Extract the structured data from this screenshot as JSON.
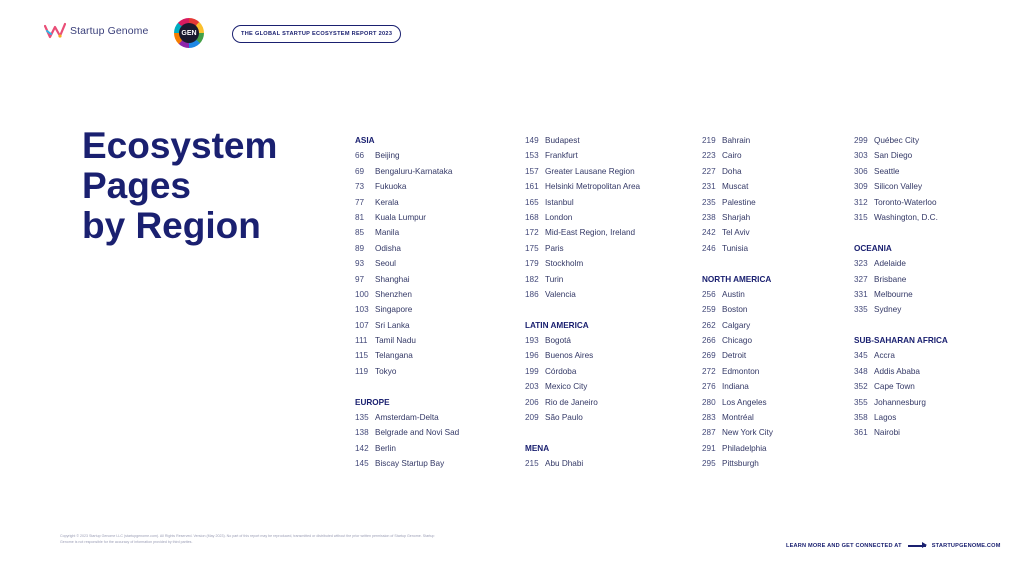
{
  "header": {
    "logo_text": "Startup Genome",
    "badge_text": "GEN",
    "report_title": "THE GLOBAL STARTUP ECOSYSTEM REPORT 2023"
  },
  "title": {
    "line1": "Ecosystem",
    "line2": "Pages",
    "line3": "by Region"
  },
  "columns": [
    [
      {
        "type": "header",
        "text": "ASIA"
      },
      {
        "type": "entry",
        "num": "66",
        "city": "Beijing"
      },
      {
        "type": "entry",
        "num": "69",
        "city": "Bengaluru-Karnataka"
      },
      {
        "type": "entry",
        "num": "73",
        "city": "Fukuoka"
      },
      {
        "type": "entry",
        "num": "77",
        "city": "Kerala"
      },
      {
        "type": "entry",
        "num": "81",
        "city": "Kuala Lumpur"
      },
      {
        "type": "entry",
        "num": "85",
        "city": "Manila"
      },
      {
        "type": "entry",
        "num": "89",
        "city": "Odisha"
      },
      {
        "type": "entry",
        "num": "93",
        "city": "Seoul"
      },
      {
        "type": "entry",
        "num": "97",
        "city": "Shanghai"
      },
      {
        "type": "entry",
        "num": "100",
        "city": "Shenzhen"
      },
      {
        "type": "entry",
        "num": "103",
        "city": "Singapore"
      },
      {
        "type": "entry",
        "num": "107",
        "city": "Sri Lanka"
      },
      {
        "type": "entry",
        "num": "111",
        "city": "Tamil Nadu"
      },
      {
        "type": "entry",
        "num": "115",
        "city": "Telangana"
      },
      {
        "type": "entry",
        "num": "119",
        "city": "Tokyo"
      },
      {
        "type": "gap"
      },
      {
        "type": "header",
        "text": "EUROPE"
      },
      {
        "type": "entry",
        "num": "135",
        "city": "Amsterdam-Delta"
      },
      {
        "type": "entry",
        "num": "138",
        "city": "Belgrade and Novi Sad"
      },
      {
        "type": "entry",
        "num": "142",
        "city": "Berlin"
      },
      {
        "type": "entry",
        "num": "145",
        "city": "Biscay Startup Bay"
      }
    ],
    [
      {
        "type": "entry",
        "num": "149",
        "city": "Budapest"
      },
      {
        "type": "entry",
        "num": "153",
        "city": "Frankfurt"
      },
      {
        "type": "entry",
        "num": "157",
        "city": "Greater Lausane Region"
      },
      {
        "type": "entry",
        "num": "161",
        "city": "Helsinki Metropolitan Area"
      },
      {
        "type": "entry",
        "num": "165",
        "city": "Istanbul"
      },
      {
        "type": "entry",
        "num": "168",
        "city": "London"
      },
      {
        "type": "entry",
        "num": "172",
        "city": "Mid-East Region, Ireland"
      },
      {
        "type": "entry",
        "num": "175",
        "city": "Paris"
      },
      {
        "type": "entry",
        "num": "179",
        "city": "Stockholm"
      },
      {
        "type": "entry",
        "num": "182",
        "city": "Turin"
      },
      {
        "type": "entry",
        "num": "186",
        "city": "Valencia"
      },
      {
        "type": "gap"
      },
      {
        "type": "header",
        "text": "LATIN AMERICA"
      },
      {
        "type": "entry",
        "num": "193",
        "city": "Bogotá"
      },
      {
        "type": "entry",
        "num": "196",
        "city": "Buenos Aires"
      },
      {
        "type": "entry",
        "num": "199",
        "city": "Córdoba"
      },
      {
        "type": "entry",
        "num": "203",
        "city": "Mexico City"
      },
      {
        "type": "entry",
        "num": "206",
        "city": "Rio de Janeiro"
      },
      {
        "type": "entry",
        "num": "209",
        "city": "São Paulo"
      },
      {
        "type": "gap"
      },
      {
        "type": "header",
        "text": "MENA"
      },
      {
        "type": "entry",
        "num": "215",
        "city": "Abu Dhabi"
      }
    ],
    [
      {
        "type": "entry",
        "num": "219",
        "city": "Bahrain"
      },
      {
        "type": "entry",
        "num": "223",
        "city": "Cairo"
      },
      {
        "type": "entry",
        "num": "227",
        "city": "Doha"
      },
      {
        "type": "entry",
        "num": "231",
        "city": "Muscat"
      },
      {
        "type": "entry",
        "num": "235",
        "city": "Palestine"
      },
      {
        "type": "entry",
        "num": "238",
        "city": "Sharjah"
      },
      {
        "type": "entry",
        "num": "242",
        "city": "Tel Aviv"
      },
      {
        "type": "entry",
        "num": "246",
        "city": "Tunisia"
      },
      {
        "type": "gap"
      },
      {
        "type": "header",
        "text": "NORTH AMERICA"
      },
      {
        "type": "entry",
        "num": "256",
        "city": "Austin"
      },
      {
        "type": "entry",
        "num": "259",
        "city": "Boston"
      },
      {
        "type": "entry",
        "num": "262",
        "city": "Calgary"
      },
      {
        "type": "entry",
        "num": "266",
        "city": "Chicago"
      },
      {
        "type": "entry",
        "num": "269",
        "city": "Detroit"
      },
      {
        "type": "entry",
        "num": "272",
        "city": "Edmonton"
      },
      {
        "type": "entry",
        "num": "276",
        "city": "Indiana"
      },
      {
        "type": "entry",
        "num": "280",
        "city": "Los Angeles"
      },
      {
        "type": "entry",
        "num": "283",
        "city": "Montréal"
      },
      {
        "type": "entry",
        "num": "287",
        "city": "New York City"
      },
      {
        "type": "entry",
        "num": "291",
        "city": "Philadelphia"
      },
      {
        "type": "entry",
        "num": "295",
        "city": "Pittsburgh"
      }
    ],
    [
      {
        "type": "entry",
        "num": "299",
        "city": "Québec City"
      },
      {
        "type": "entry",
        "num": "303",
        "city": "San Diego"
      },
      {
        "type": "entry",
        "num": "306",
        "city": "Seattle"
      },
      {
        "type": "entry",
        "num": "309",
        "city": "Silicon Valley"
      },
      {
        "type": "entry",
        "num": "312",
        "city": "Toronto-Waterloo"
      },
      {
        "type": "entry",
        "num": "315",
        "city": "Washington, D.C."
      },
      {
        "type": "gap"
      },
      {
        "type": "header",
        "text": "OCEANIA"
      },
      {
        "type": "entry",
        "num": "323",
        "city": "Adelaide"
      },
      {
        "type": "entry",
        "num": "327",
        "city": "Brisbane"
      },
      {
        "type": "entry",
        "num": "331",
        "city": "Melbourne"
      },
      {
        "type": "entry",
        "num": "335",
        "city": "Sydney"
      },
      {
        "type": "gap"
      },
      {
        "type": "header",
        "text": "SUB-SAHARAN AFRICA"
      },
      {
        "type": "entry",
        "num": "345",
        "city": "Accra"
      },
      {
        "type": "entry",
        "num": "348",
        "city": "Addis Ababa"
      },
      {
        "type": "entry",
        "num": "352",
        "city": "Cape Town"
      },
      {
        "type": "entry",
        "num": "355",
        "city": "Johannesburg"
      },
      {
        "type": "entry",
        "num": "358",
        "city": "Lagos"
      },
      {
        "type": "entry",
        "num": "361",
        "city": "Nairobi"
      }
    ]
  ],
  "footer": {
    "copyright": "Copyright © 2023 Startup Genome LLC (startupgenome.com). All Rights Reserved. Version (May 2023). No part of this report may be reproduced, transmitted or distributed without the prior written permission of Startup Genome. Startup Genome is not responsible for the accuracy of information provided by third parties.",
    "learn_more": "LEARN MORE AND GET CONNECTED AT",
    "url": "STARTUPGENOME.COM"
  },
  "colors": {
    "primary": "#1a2070",
    "text": "#333866"
  }
}
